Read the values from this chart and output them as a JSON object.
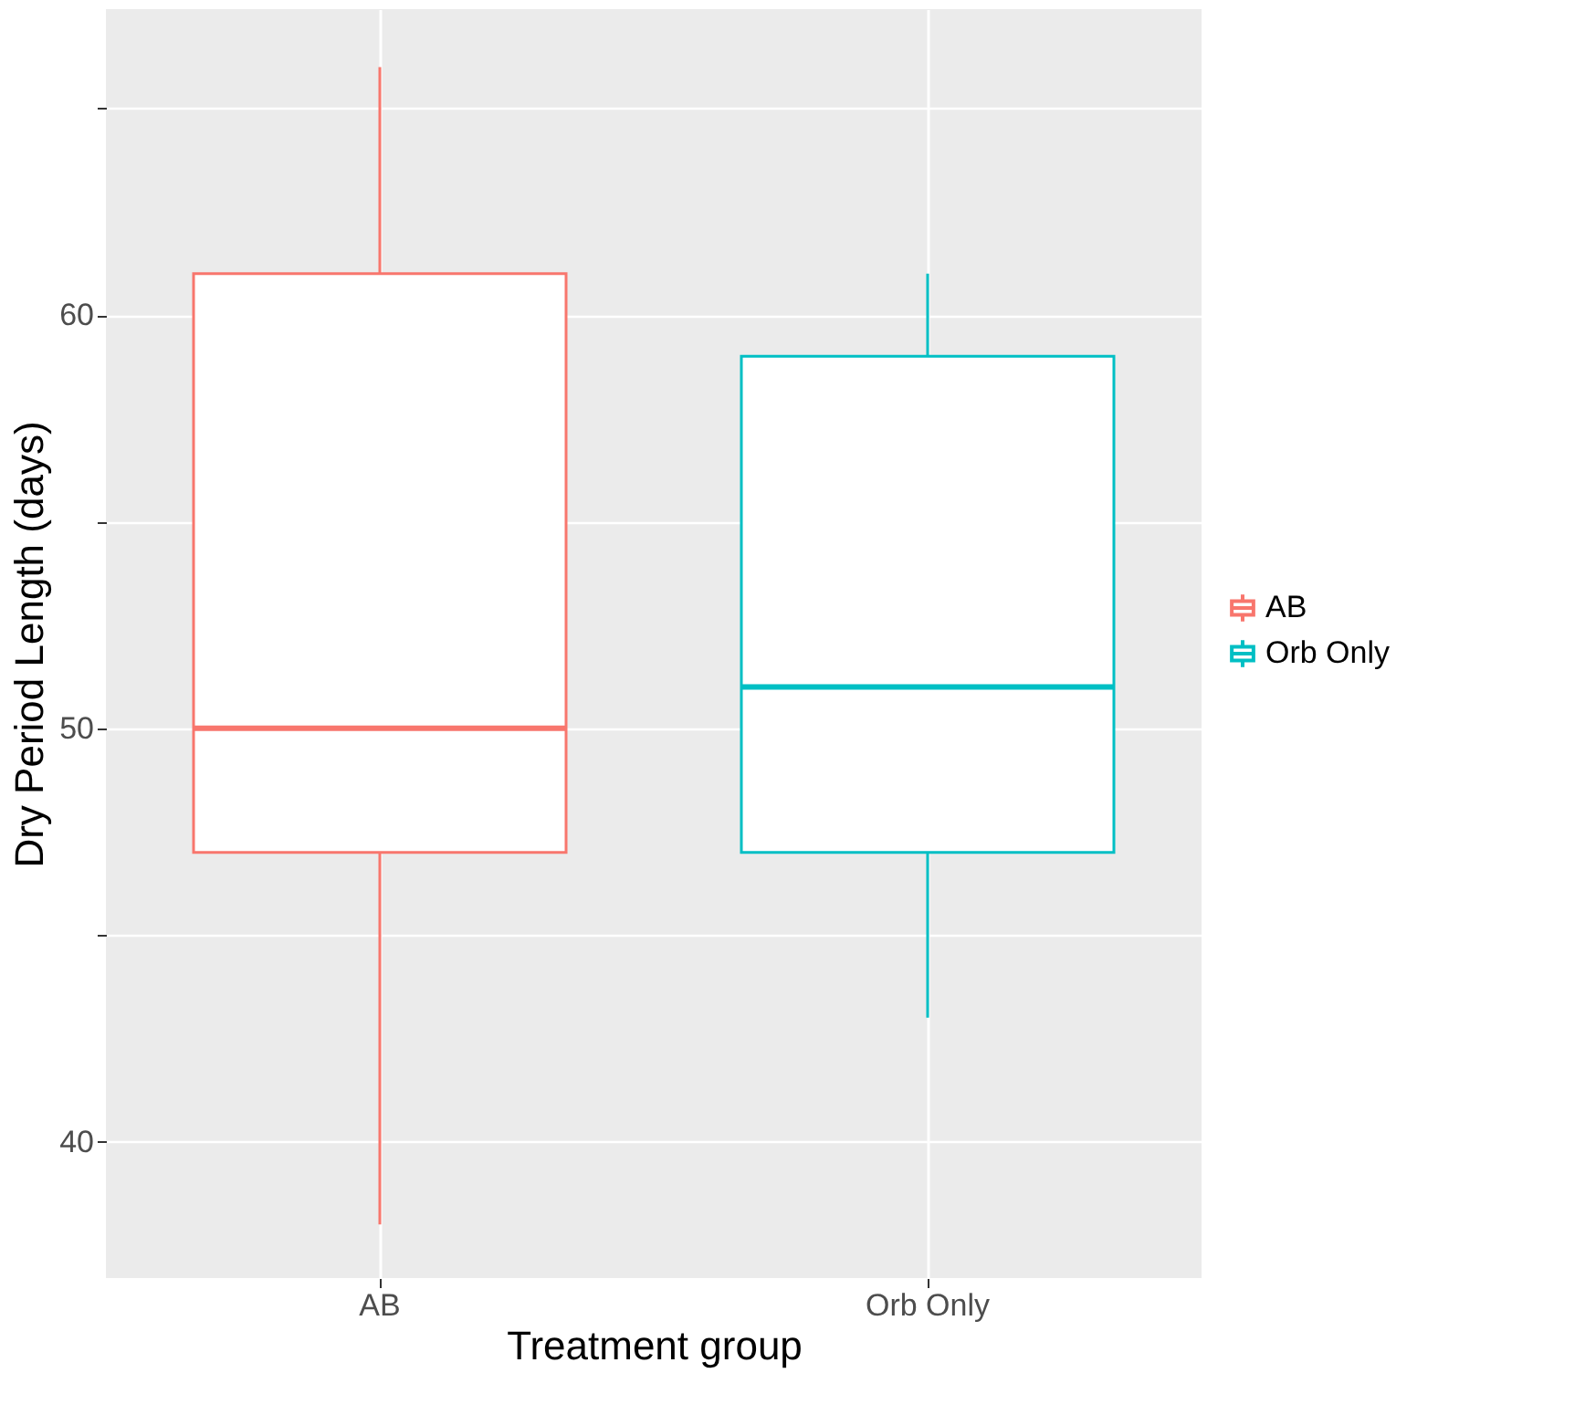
{
  "chart_data": {
    "type": "box",
    "xlabel": "Treatment group",
    "ylabel": "Dry Period Length (days)",
    "categories": [
      "AB",
      "Orb Only"
    ],
    "series": [
      {
        "name": "AB",
        "color": "#f8766d",
        "boxes": [
          {
            "low": 38,
            "q1": 47,
            "median": 50,
            "q3": 61,
            "high": 66
          },
          null
        ]
      },
      {
        "name": "Orb Only",
        "color": "#00bfc4",
        "boxes": [
          null,
          {
            "low": 43,
            "q1": 47,
            "median": 51,
            "q3": 59,
            "high": 61
          }
        ]
      }
    ],
    "ylim": [
      36.7,
      67.4
    ],
    "yticks": [
      40,
      {
        "value": 45,
        "label": null
      },
      50,
      {
        "value": 55,
        "label": null
      },
      60,
      {
        "value": 65,
        "label": null
      }
    ],
    "grid": true,
    "legend": "right"
  }
}
